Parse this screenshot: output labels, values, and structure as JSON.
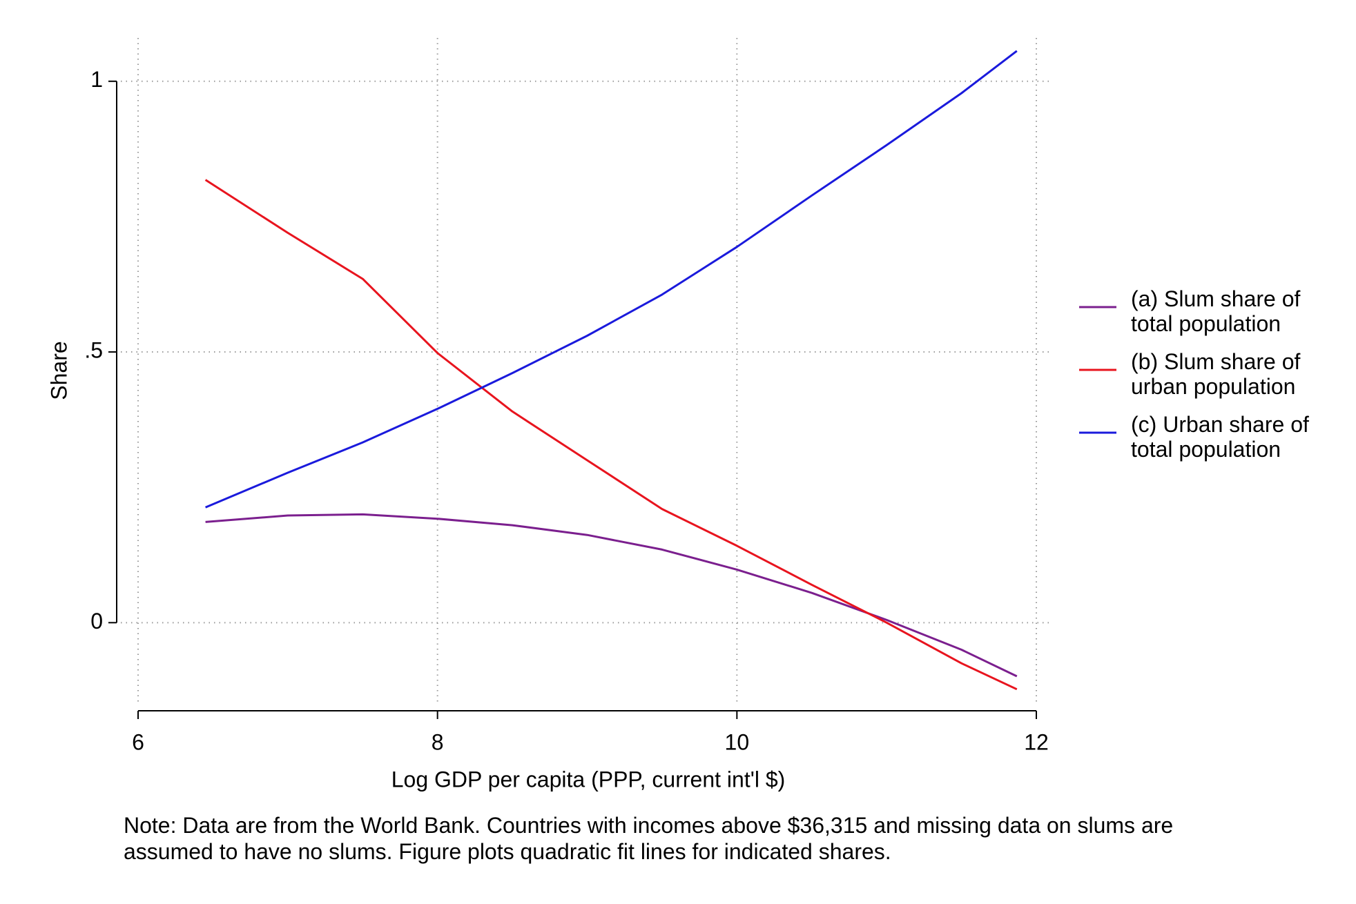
{
  "chart_data": {
    "type": "line",
    "x_label": "Log GDP per capita (PPP, current int'l $)",
    "y_label": "Share",
    "note": "Note: Data are from the World Bank. Countries with incomes above $36,315 and missing data on slums are assumed to have no slums. Figure plots quadratic fit lines for indicated shares.",
    "x": [
      6.45,
      7,
      7.5,
      8,
      8.5,
      9,
      9.5,
      10,
      10.5,
      11,
      11.5,
      11.87
    ],
    "series": [
      {
        "name": "(a) Slum share of total population",
        "color": "#7b1f8e",
        "values": [
          0.186,
          0.198,
          0.2,
          0.192,
          0.18,
          0.162,
          0.135,
          0.098,
          0.055,
          0.005,
          -0.05,
          -0.099
        ]
      },
      {
        "name": "(b) Slum share of urban population",
        "color": "#e8141e",
        "values": [
          0.818,
          0.72,
          0.635,
          0.498,
          0.39,
          0.3,
          0.21,
          0.142,
          0.07,
          0.0,
          -0.075,
          -0.123
        ]
      },
      {
        "name": "(c) Urban share of total population",
        "color": "#1a1adc",
        "values": [
          0.213,
          0.277,
          0.333,
          0.395,
          0.461,
          0.53,
          0.606,
          0.694,
          0.789,
          0.882,
          0.978,
          1.056
        ]
      }
    ],
    "xlim": [
      6,
      12
    ],
    "xticks": [
      6,
      8,
      10,
      12
    ],
    "ylim": [
      -0.15,
      1.08
    ],
    "yticks": [
      0,
      {
        "value": 0.5,
        "label": ".5"
      },
      1
    ],
    "grid": true,
    "legend": "right"
  }
}
